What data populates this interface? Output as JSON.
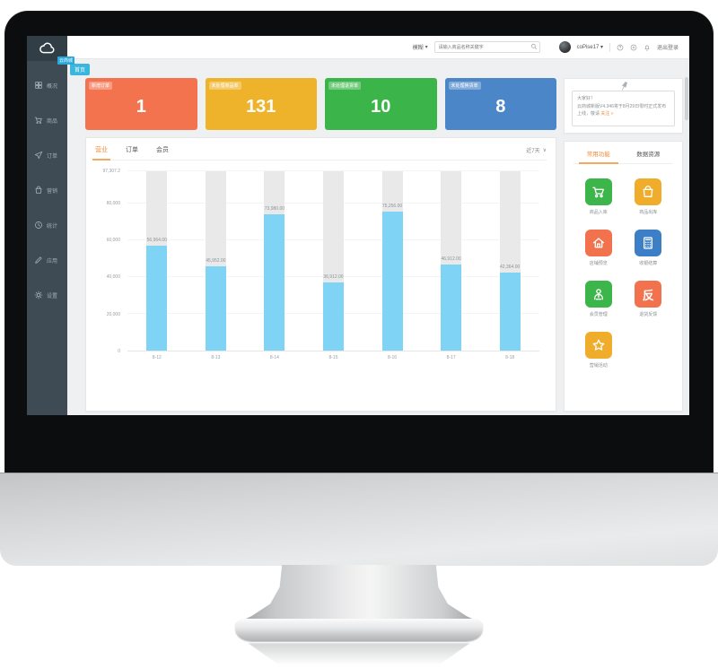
{
  "sidebar": {
    "logo_badge": "云商城",
    "items": [
      {
        "icon": "dashboard-icon",
        "label": "概况"
      },
      {
        "icon": "cart-icon",
        "label": "商品"
      },
      {
        "icon": "send-icon",
        "label": "订单"
      },
      {
        "icon": "bag-icon",
        "label": "营销"
      },
      {
        "icon": "clock-icon",
        "label": "统计"
      },
      {
        "icon": "pencil-icon",
        "label": "应用"
      },
      {
        "icon": "gear-icon",
        "label": "设置"
      }
    ]
  },
  "header": {
    "search_category": "模糊",
    "search_placeholder": "请输入商品名称关键字",
    "username": "coPise17",
    "logout": "退出登录"
  },
  "breadcrumb": "首页",
  "stat_cards": [
    {
      "label": "新增订单",
      "value": "1",
      "color": "#f3734f"
    },
    {
      "label": "未处理商品单",
      "value": "131",
      "color": "#efb32b"
    },
    {
      "label": "未处理退货单",
      "value": "10",
      "color": "#3bb54a"
    },
    {
      "label": "未处理换货单",
      "value": "8",
      "color": "#4b87c8"
    }
  ],
  "chart_panel": {
    "tabs": [
      "营业",
      "订单",
      "会员"
    ],
    "active_tab": "营业",
    "range_filter": "近7天",
    "chart_data": {
      "type": "bar",
      "title": "",
      "xlabel": "",
      "ylabel": "",
      "categories": [
        "8-12",
        "8-13",
        "8-14",
        "8-15",
        "8-16",
        "8-17",
        "8-18"
      ],
      "values": [
        56964.0,
        45952.0,
        73980.0,
        36912.0,
        75256.0,
        46912.0,
        42364.0
      ],
      "value_labels": [
        "56,964.00",
        "45,952.00",
        "73,980.00",
        "36,912.00",
        "75,256.00",
        "46,912.00",
        "42,364.00"
      ],
      "ymax": 97307.2,
      "yticks": [
        {
          "label": "97,307.2",
          "value": 97307.2
        },
        {
          "label": "80,000",
          "value": 80000
        },
        {
          "label": "60,000",
          "value": 60000
        },
        {
          "label": "40,000",
          "value": 40000
        },
        {
          "label": "20,000",
          "value": 20000
        },
        {
          "label": "0",
          "value": 0
        }
      ],
      "bar_color": "#7fd4f5",
      "track_color": "#e9e9e9",
      "grid": true,
      "legend_position": "none"
    }
  },
  "notice": {
    "greeting": "大家好！",
    "body": "云商城新版V4.346将于8月29日零时正式发布上线，敬请",
    "link": "关注 »"
  },
  "quick_panel": {
    "tabs": [
      "常用功能",
      "数据资源"
    ],
    "active_tab": "常用功能",
    "tiles": [
      {
        "icon": "cart-icon",
        "color": "#3cb54b",
        "label": "商品入库"
      },
      {
        "icon": "bag-icon",
        "color": "#f0ad2c",
        "label": "商品出库"
      },
      {
        "icon": "home-icon",
        "color": "#f3724e",
        "label": "店铺预览"
      },
      {
        "icon": "calculator-icon",
        "color": "#3d7fc6",
        "label": "收银结算"
      },
      {
        "icon": "person-icon",
        "color": "#3cb54b",
        "label": "会员管理"
      },
      {
        "icon": "fan-glyph-icon",
        "color": "#f3724e",
        "label": "退货反馈",
        "glyph": "反"
      },
      {
        "icon": "star-icon",
        "color": "#f0ad2c",
        "label": "营销活动"
      }
    ]
  },
  "colors": {
    "accent_orange": "#f08c3a",
    "tag_blue": "#3bb7de",
    "sidebar_bg": "#3e4b54",
    "bar_blue": "#7fd4f5"
  }
}
